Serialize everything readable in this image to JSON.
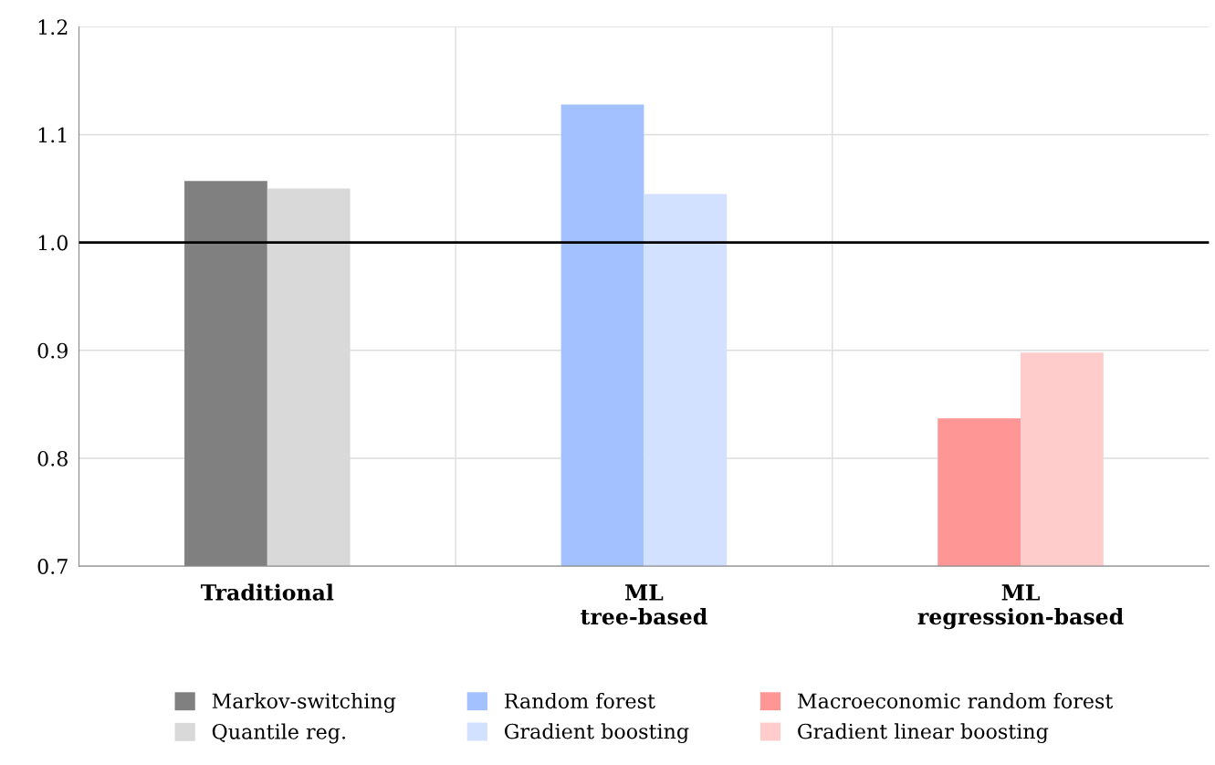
{
  "chart_data": {
    "type": "bar",
    "categories": [
      "Traditional",
      "ML\ntree-based",
      "ML\nregression-based"
    ],
    "series": [
      {
        "name": "Markov-switching",
        "color": "#808080",
        "values": [
          1.057,
          null,
          null
        ]
      },
      {
        "name": "Quantile reg.",
        "color": "#d9d9d9",
        "values": [
          1.05,
          null,
          null
        ]
      },
      {
        "name": "Random forest",
        "color": "#a3c0ff",
        "values": [
          null,
          1.128,
          null
        ]
      },
      {
        "name": "Gradient boosting",
        "color": "#d2e1ff",
        "values": [
          null,
          1.045,
          null
        ]
      },
      {
        "name": "Macroeconomic random forest",
        "color": "#ff9696",
        "values": [
          null,
          null,
          0.837
        ]
      },
      {
        "name": "Gradient linear boosting",
        "color": "#ffcccc",
        "values": [
          null,
          null,
          0.898
        ]
      }
    ],
    "ylim": [
      0.7,
      1.2
    ],
    "yticks": [
      {
        "value": 0.7,
        "label": "0.7"
      },
      {
        "value": 0.8,
        "label": "0.8"
      },
      {
        "value": 0.9,
        "label": "0.9"
      },
      {
        "value": 1.0,
        "label": "1.0"
      },
      {
        "value": 1.1,
        "label": "1.1"
      },
      {
        "value": 1.2,
        "label": "1.2"
      }
    ],
    "ref_lines": [
      {
        "axis": "y",
        "value": 1.0,
        "color": "#000000",
        "line_style": "solid"
      }
    ],
    "grid": true,
    "legend": "bottom"
  }
}
